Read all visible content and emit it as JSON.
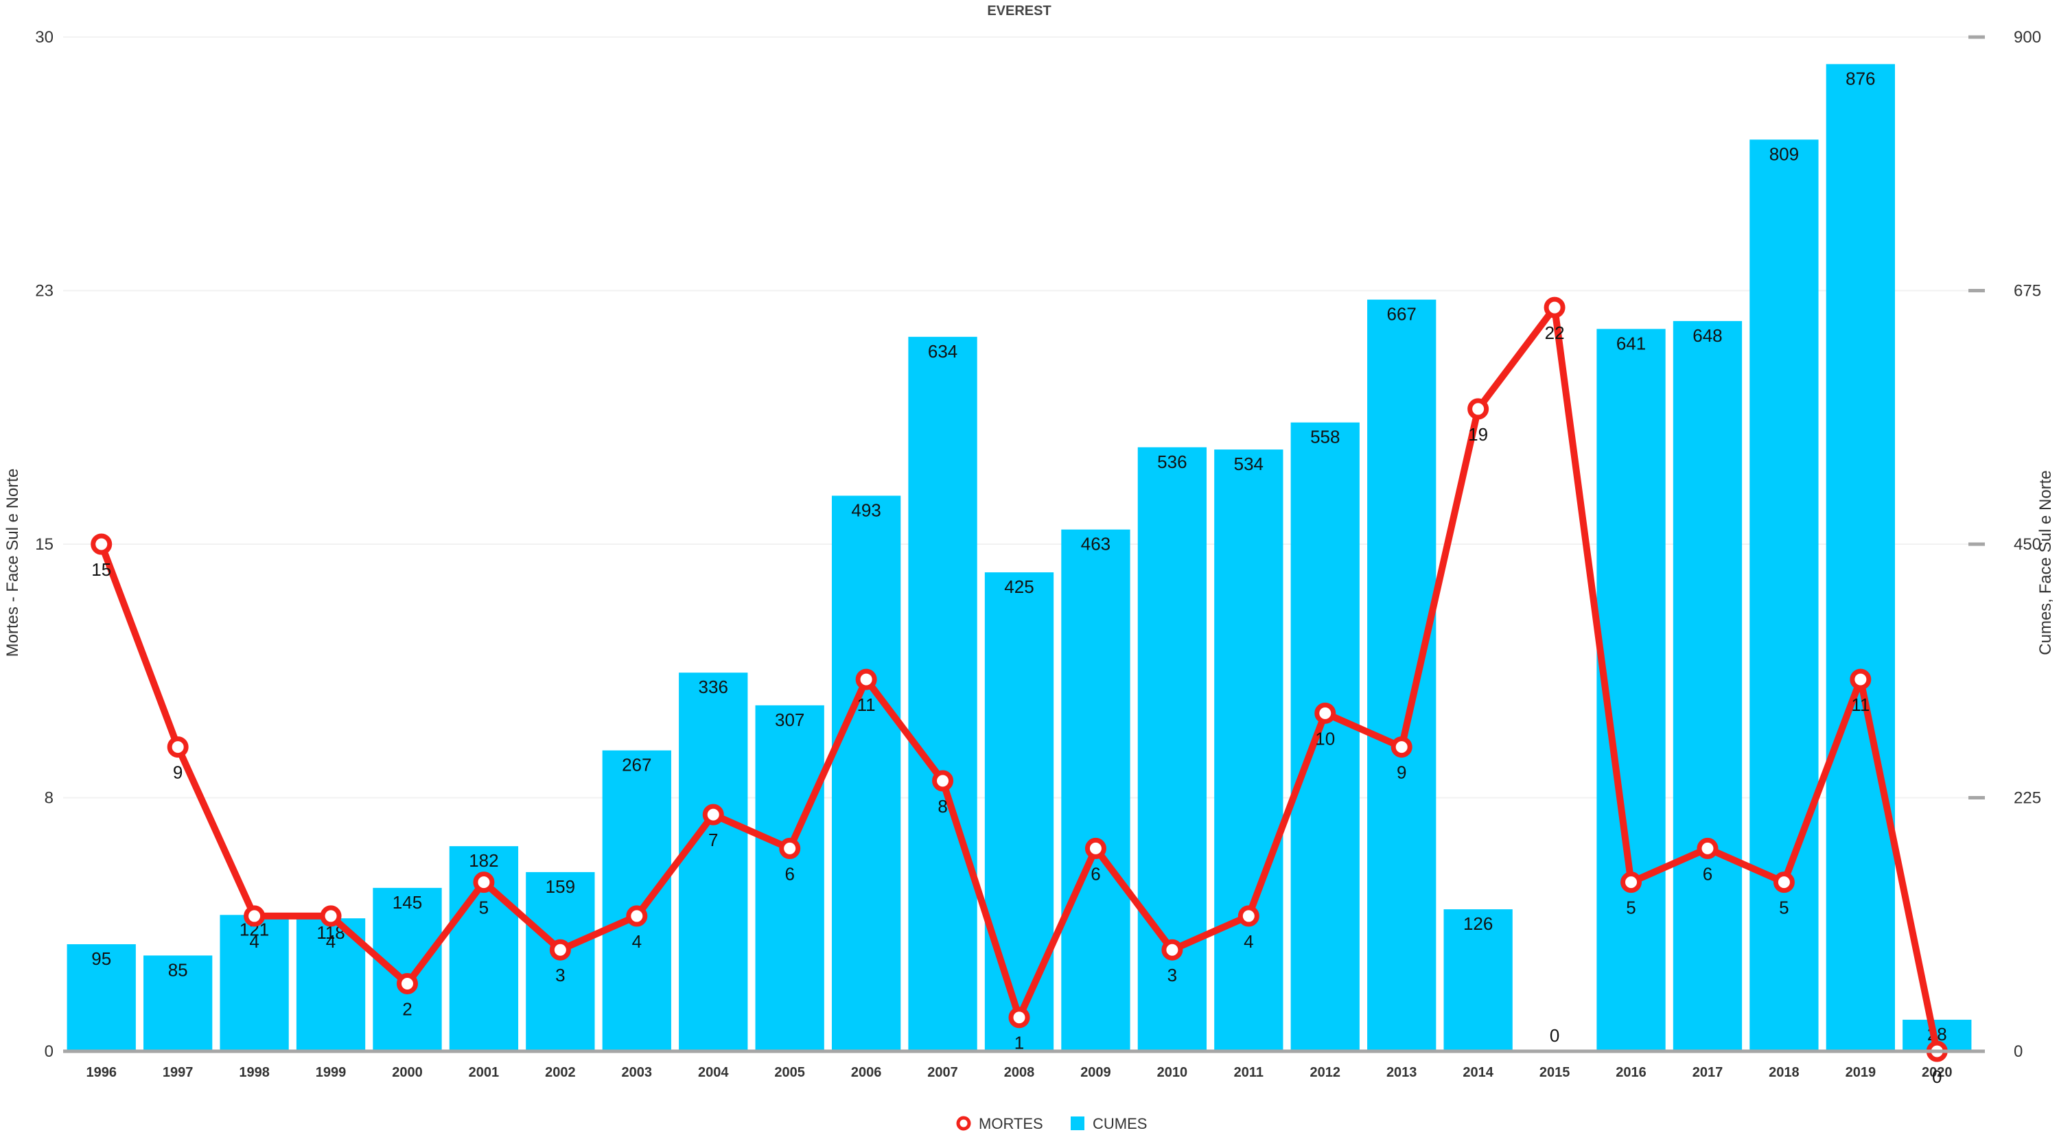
{
  "chart_data": {
    "type": "bar",
    "title": "EVEREST",
    "x": [
      "1996",
      "1997",
      "1998",
      "1999",
      "2000",
      "2001",
      "2002",
      "2003",
      "2004",
      "2005",
      "2006",
      "2007",
      "2008",
      "2009",
      "2010",
      "2011",
      "2012",
      "2013",
      "2014",
      "2015",
      "2016",
      "2017",
      "2018",
      "2019",
      "2020"
    ],
    "series": [
      {
        "name": "CUMES",
        "type": "bar",
        "axis": "right",
        "color": "#00ccff",
        "values": [
          95,
          85,
          121,
          118,
          145,
          182,
          159,
          267,
          336,
          307,
          493,
          634,
          425,
          463,
          536,
          534,
          558,
          667,
          126,
          0,
          641,
          648,
          809,
          876,
          28
        ]
      },
      {
        "name": "MORTES",
        "type": "line",
        "axis": "left",
        "color": "#f2231b",
        "values": [
          15,
          9,
          4,
          4,
          2,
          5,
          3,
          4,
          7,
          6,
          11,
          8,
          1,
          6,
          3,
          4,
          10,
          9,
          19,
          22,
          5,
          6,
          5,
          11,
          0
        ]
      }
    ],
    "y_left": {
      "label": "Mortes - Face Sul e Norte",
      "range": [
        0,
        30
      ],
      "ticks": [
        "0",
        "8",
        "15",
        "23",
        "30"
      ]
    },
    "y_right": {
      "label": "Cumes, Face Sul e Norte",
      "range": [
        0,
        900
      ],
      "ticks": [
        "0",
        "225",
        "450",
        "675",
        "900"
      ]
    },
    "legend": {
      "position": "bottom-center",
      "items": [
        {
          "label": "MORTES",
          "color": "#f2231b",
          "marker": "hollow-circle"
        },
        {
          "label": "CUMES",
          "color": "#00ccff",
          "marker": "square"
        }
      ]
    },
    "grid": true
  }
}
